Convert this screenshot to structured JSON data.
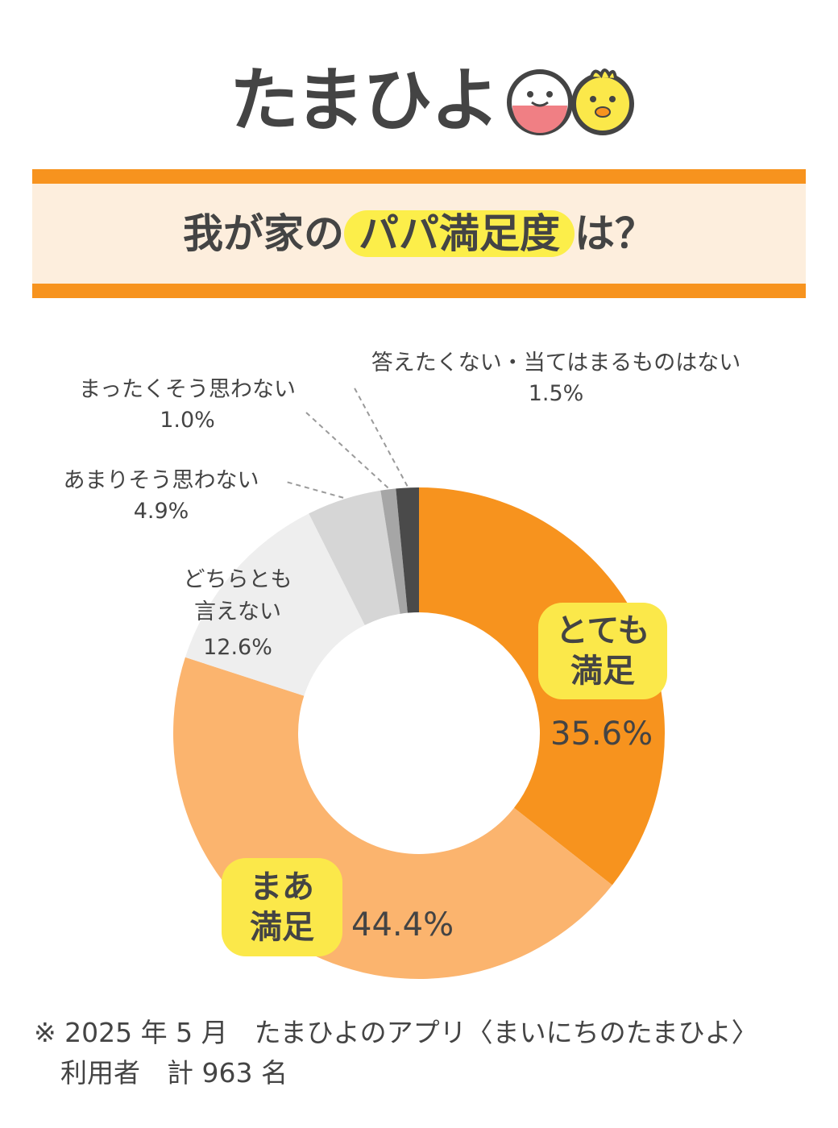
{
  "logo": {
    "text": "たまひよ"
  },
  "banner": {
    "prefix": "我が家の",
    "highlight": "パパ満足度",
    "suffix": "は？"
  },
  "colors": {
    "accent": "#f7931e",
    "highlight": "#fcee4a",
    "banner_bg": "#fdeedd"
  },
  "chart_data": {
    "type": "pie",
    "title": "我が家のパパ満足度は？",
    "slices": [
      {
        "label": "とても満足",
        "value": 35.6,
        "display": "35.6%",
        "color": "#f7931e"
      },
      {
        "label": "まあ満足",
        "value": 44.4,
        "display": "44.4%",
        "color": "#fbb46e"
      },
      {
        "label": "どちらとも言えない",
        "value": 12.6,
        "display": "12.6%",
        "color": "#eeeeee"
      },
      {
        "label": "あまりそう思わない",
        "value": 4.9,
        "display": "4.9%",
        "color": "#d6d6d6"
      },
      {
        "label": "まったくそう思わない",
        "value": 1.0,
        "display": "1.0%",
        "color": "#a6a6a6"
      },
      {
        "label": "答えたくない・当てはまるものはない",
        "value": 1.5,
        "display": "1.5%",
        "color": "#4a4a4a"
      }
    ]
  },
  "labels": {
    "very_satisfied": {
      "line1": "とても",
      "line2": "満足",
      "value": "35.6%"
    },
    "somewhat_satisfied": {
      "line1": "まあ",
      "line2": "満足",
      "value": "44.4%"
    },
    "neither": {
      "line1": "どちらとも",
      "line2": "言えない",
      "value": "12.6%"
    },
    "not_really": {
      "line1": "あまりそう思わない",
      "value": "4.9%"
    },
    "not_at_all": {
      "line1": "まったくそう思わない",
      "value": "1.0%"
    },
    "no_answer": {
      "line1": "答えたくない・当てはまるものはない",
      "value": "1.5%"
    }
  },
  "footnote": {
    "line1": "※ 2025 年 5 月　たまひよのアプリ〈まいにちのたまひよ〉",
    "line2": "　利用者　計 963 名"
  }
}
